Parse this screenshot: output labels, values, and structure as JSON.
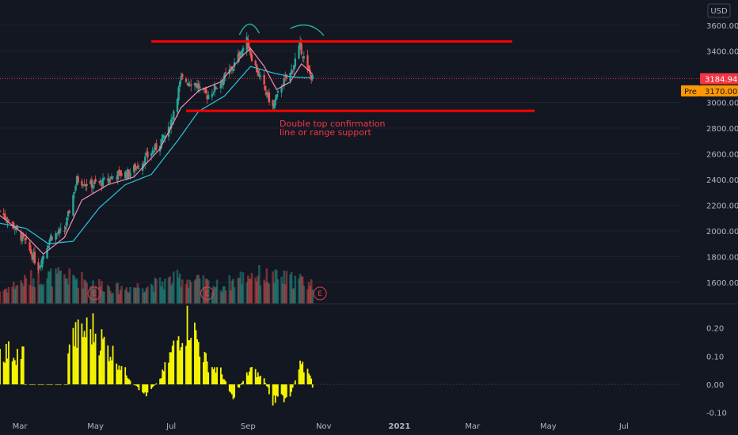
{
  "currency_label": "USD",
  "colors": {
    "up": "#26a69a",
    "down": "#ef5350",
    "ma_fast": "#f48fb1",
    "ma_slow": "#26c6da",
    "level": "#ff0000",
    "arc": "#26a69a",
    "histogram": "#f5f500",
    "price_tag": "#f23645",
    "pre_tag": "#ff9800"
  },
  "chart_data": [
    {
      "type": "candlestick",
      "title": "",
      "x_ticks": [
        "Mar",
        "May",
        "Jul",
        "Sep",
        "Nov",
        "2021",
        "Mar",
        "May",
        "Jul"
      ],
      "y_ticks": [
        "3600.00",
        "3400.00",
        "3200.00",
        "3000.00",
        "2800.00",
        "2600.00",
        "2400.00",
        "2200.00",
        "2000.00",
        "1800.00",
        "1600.00"
      ],
      "ylim": [
        1440,
        3650
      ],
      "last_price": 3184.94,
      "last_price_label": "3184.94",
      "premarket_label": "Pre",
      "premarket_price": 3170.0,
      "premarket_price_label": "3170.00",
      "resistance_level": 3475,
      "support_level": 2935,
      "annotation_lines": [
        "Double top confirmation",
        "line or range support"
      ],
      "earnings_markers": [
        "E",
        "E",
        "E"
      ],
      "price_path": [
        {
          "date": "2020-02-14",
          "close": 2155
        },
        {
          "date": "2020-02-24",
          "close": 2050
        },
        {
          "date": "2020-03-06",
          "close": 1900
        },
        {
          "date": "2020-03-16",
          "close": 1720
        },
        {
          "date": "2020-03-26",
          "close": 1960
        },
        {
          "date": "2020-04-06",
          "close": 2000
        },
        {
          "date": "2020-04-16",
          "close": 2400
        },
        {
          "date": "2020-04-27",
          "close": 2360
        },
        {
          "date": "2020-05-07",
          "close": 2380
        },
        {
          "date": "2020-05-18",
          "close": 2440
        },
        {
          "date": "2020-05-28",
          "close": 2450
        },
        {
          "date": "2020-06-08",
          "close": 2540
        },
        {
          "date": "2020-06-18",
          "close": 2640
        },
        {
          "date": "2020-06-29",
          "close": 2780
        },
        {
          "date": "2020-07-09",
          "close": 3180
        },
        {
          "date": "2020-07-20",
          "close": 3150
        },
        {
          "date": "2020-07-30",
          "close": 3050
        },
        {
          "date": "2020-08-10",
          "close": 3160
        },
        {
          "date": "2020-08-20",
          "close": 3280
        },
        {
          "date": "2020-08-31",
          "close": 3480
        },
        {
          "date": "2020-09-03",
          "close": 3380
        },
        {
          "date": "2020-09-10",
          "close": 3200
        },
        {
          "date": "2020-09-21",
          "close": 2960
        },
        {
          "date": "2020-09-28",
          "close": 3140
        },
        {
          "date": "2020-10-05",
          "close": 3220
        },
        {
          "date": "2020-10-13",
          "close": 3440
        },
        {
          "date": "2020-10-19",
          "close": 3250
        },
        {
          "date": "2020-10-23",
          "close": 3185
        }
      ],
      "ma_fast_path": [
        {
          "date": "2020-02-14",
          "value": 2120
        },
        {
          "date": "2020-03-06",
          "value": 1960
        },
        {
          "date": "2020-03-20",
          "value": 1820
        },
        {
          "date": "2020-04-06",
          "value": 1950
        },
        {
          "date": "2020-04-20",
          "value": 2240
        },
        {
          "date": "2020-05-11",
          "value": 2360
        },
        {
          "date": "2020-06-01",
          "value": 2420
        },
        {
          "date": "2020-06-22",
          "value": 2640
        },
        {
          "date": "2020-07-09",
          "value": 2960
        },
        {
          "date": "2020-07-23",
          "value": 3090
        },
        {
          "date": "2020-08-10",
          "value": 3160
        },
        {
          "date": "2020-08-27",
          "value": 3360
        },
        {
          "date": "2020-09-03",
          "value": 3420
        },
        {
          "date": "2020-09-14",
          "value": 3280
        },
        {
          "date": "2020-09-24",
          "value": 3100
        },
        {
          "date": "2020-10-05",
          "value": 3160
        },
        {
          "date": "2020-10-14",
          "value": 3300
        },
        {
          "date": "2020-10-23",
          "value": 3220
        }
      ],
      "ma_slow_path": [
        {
          "date": "2020-02-14",
          "value": 2060
        },
        {
          "date": "2020-03-06",
          "value": 2020
        },
        {
          "date": "2020-03-24",
          "value": 1900
        },
        {
          "date": "2020-04-13",
          "value": 1920
        },
        {
          "date": "2020-05-04",
          "value": 2180
        },
        {
          "date": "2020-05-25",
          "value": 2360
        },
        {
          "date": "2020-06-15",
          "value": 2440
        },
        {
          "date": "2020-07-06",
          "value": 2700
        },
        {
          "date": "2020-07-23",
          "value": 2930
        },
        {
          "date": "2020-08-13",
          "value": 3050
        },
        {
          "date": "2020-09-03",
          "value": 3280
        },
        {
          "date": "2020-09-21",
          "value": 3230
        },
        {
          "date": "2020-10-05",
          "value": 3200
        },
        {
          "date": "2020-10-23",
          "value": 3190
        }
      ],
      "volume_profile": [
        {
          "date": "2020-02-14",
          "level": 0.3
        },
        {
          "date": "2020-03-16",
          "level": 0.65
        },
        {
          "date": "2020-04-16",
          "level": 0.6
        },
        {
          "date": "2020-05-18",
          "level": 0.35
        },
        {
          "date": "2020-06-18",
          "level": 0.45
        },
        {
          "date": "2020-07-09",
          "level": 0.6
        },
        {
          "date": "2020-08-10",
          "level": 0.4
        },
        {
          "date": "2020-09-03",
          "level": 0.7
        },
        {
          "date": "2020-09-21",
          "level": 0.6
        },
        {
          "date": "2020-10-13",
          "level": 0.55
        },
        {
          "date": "2020-10-23",
          "level": 0.45
        }
      ]
    },
    {
      "type": "bar",
      "title": "",
      "y_ticks": [
        "0.20",
        "0.10",
        "0.00",
        "-0.10"
      ],
      "ylim": [
        -0.12,
        0.27
      ],
      "profile": [
        {
          "date": "2020-02-14",
          "value": 0.13
        },
        {
          "date": "2020-03-04",
          "value": 0.12
        },
        {
          "date": "2020-03-05",
          "value": 0.0
        },
        {
          "date": "2020-04-08",
          "value": 0.0
        },
        {
          "date": "2020-04-09",
          "value": 0.17
        },
        {
          "date": "2020-04-28",
          "value": 0.22
        },
        {
          "date": "2020-05-15",
          "value": 0.12
        },
        {
          "date": "2020-06-01",
          "value": 0.0
        },
        {
          "date": "2020-06-10",
          "value": -0.04
        },
        {
          "date": "2020-06-22",
          "value": 0.02
        },
        {
          "date": "2020-07-09",
          "value": 0.21
        },
        {
          "date": "2020-07-16",
          "value": 0.25
        },
        {
          "date": "2020-07-30",
          "value": 0.08
        },
        {
          "date": "2020-08-10",
          "value": 0.05
        },
        {
          "date": "2020-08-20",
          "value": -0.05
        },
        {
          "date": "2020-09-03",
          "value": 0.06
        },
        {
          "date": "2020-09-14",
          "value": 0.02
        },
        {
          "date": "2020-09-21",
          "value": -0.07
        },
        {
          "date": "2020-10-05",
          "value": -0.04
        },
        {
          "date": "2020-10-13",
          "value": 0.07
        },
        {
          "date": "2020-10-21",
          "value": 0.05
        },
        {
          "date": "2020-10-23",
          "value": -0.01
        }
      ]
    }
  ]
}
